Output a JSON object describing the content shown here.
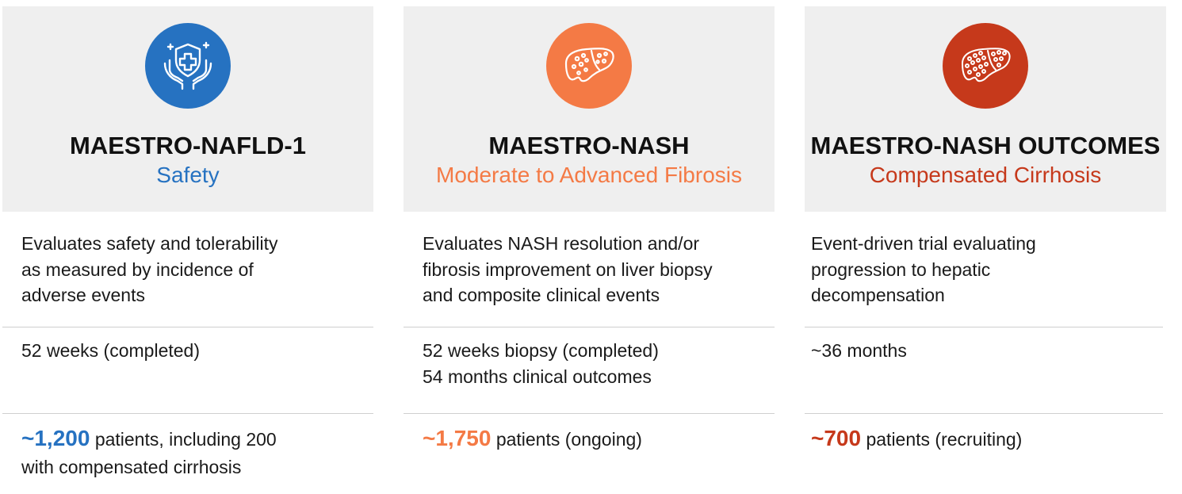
{
  "colors": {
    "blue": "#2672c1",
    "orange": "#f47a45",
    "red": "#c6391b"
  },
  "trials": [
    {
      "icon": "shield-hands-icon",
      "title": "MAESTRO-NAFLD-1",
      "subtitle": "Safety",
      "description": [
        "Evaluates safety and tolerability",
        "as measured by incidence of",
        "adverse events"
      ],
      "duration": [
        "52 weeks (completed)"
      ],
      "patients_number": "~1,200",
      "patients_text": "patients, including 200",
      "patients_text_2": "with compensated cirrhosis"
    },
    {
      "icon": "liver-icon",
      "title": "MAESTRO-NASH",
      "subtitle": "Moderate to Advanced Fibrosis",
      "description": [
        "Evaluates NASH resolution and/or",
        "fibrosis improvement on liver biopsy",
        "and composite clinical events"
      ],
      "duration": [
        "52 weeks biopsy (completed)",
        "54 months clinical outcomes"
      ],
      "patients_number": "~1,750",
      "patients_text": "patients (ongoing)"
    },
    {
      "icon": "cirrhotic-liver-icon",
      "title": "MAESTRO-NASH OUTCOMES",
      "subtitle": "Compensated Cirrhosis",
      "description": [
        "Event-driven trial evaluating",
        "progression to hepatic",
        "decompensation"
      ],
      "duration": [
        "~36 months"
      ],
      "patients_number": "~700",
      "patients_text": "patients (recruiting)"
    }
  ]
}
